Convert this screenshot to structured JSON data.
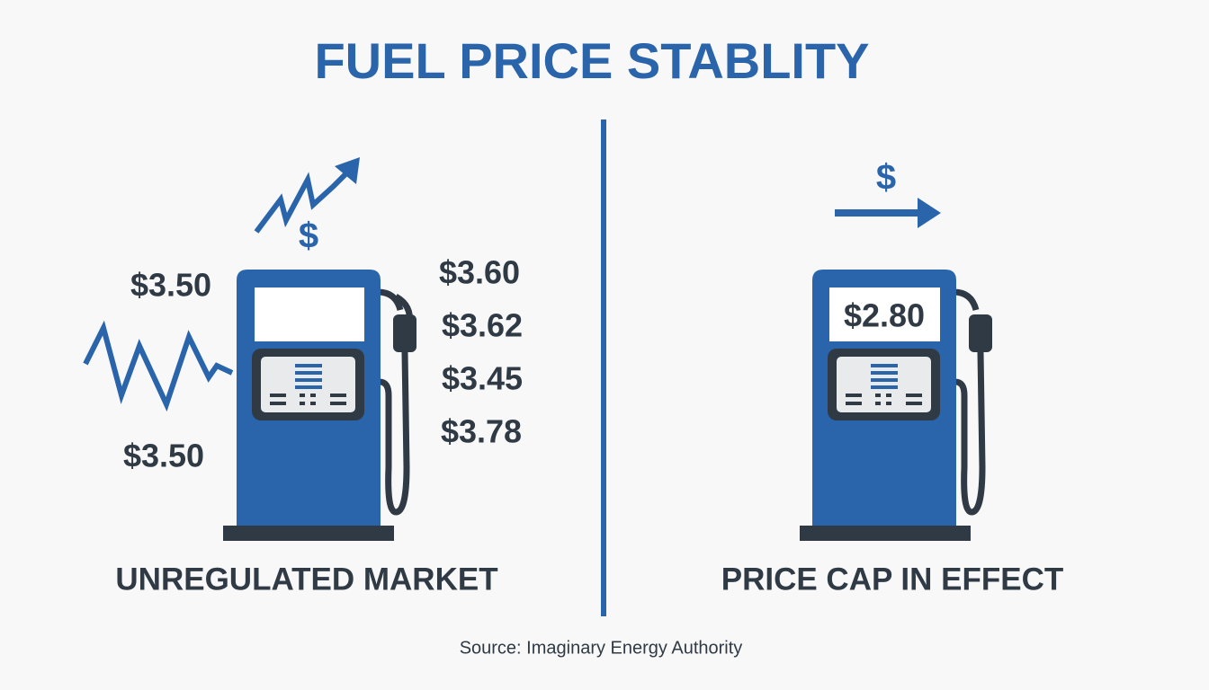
{
  "title": "FUEL PRICE STABLITY",
  "left": {
    "label": "UNREGULATED MARKET",
    "icon_symbol": "$",
    "prices_left": [
      "$3.50",
      "$3.50"
    ],
    "prices_right": [
      "$3.60",
      "$3.62",
      "$3.45",
      "$3.78"
    ]
  },
  "right": {
    "label": "PRICE CAP IN EFFECT",
    "icon_symbol": "$",
    "price": "$2.80"
  },
  "source": "Source: Imaginary Energy Authority"
}
